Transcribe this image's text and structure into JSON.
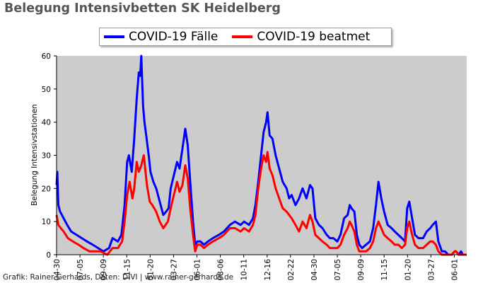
{
  "title": "Belegung Intensivbetten SK Heidelberg",
  "footer": "Grafik: Rainer Gerhards, Daten: DIVI | www.rainer-gerhards.de",
  "colors": {
    "plot_bg": "#cccccc",
    "faelle": "#0000ff",
    "beatmet": "#ff0000"
  },
  "chart_data": {
    "type": "line",
    "title": "Belegung Intensivbetten SK Heidelberg",
    "xlabel": "",
    "ylabel": "Belegung Intensivstationen",
    "ylim": [
      0,
      60
    ],
    "yticks": [
      0,
      10,
      20,
      30,
      40,
      50,
      60
    ],
    "xticks": [
      "04-30",
      "07-05",
      "09-09",
      "11-15",
      "01-20",
      "03-27",
      "06-01",
      "08-06",
      "10-11",
      "12-16",
      "02-22",
      "04-30",
      "07-05",
      "09-09",
      "11-15",
      "01-20",
      "03-27",
      "06-01"
    ],
    "x_start": "2020-04-30",
    "x_end": "2023-07-01",
    "grid": false,
    "legend_position": "top-center",
    "series": [
      {
        "name": "COVID-19 Fälle",
        "color": "#0000ff",
        "points": [
          [
            "2020-04-30",
            21
          ],
          [
            "2020-05-02",
            25
          ],
          [
            "2020-05-05",
            15
          ],
          [
            "2020-05-10",
            13
          ],
          [
            "2020-05-20",
            11
          ],
          [
            "2020-05-30",
            9
          ],
          [
            "2020-06-10",
            7
          ],
          [
            "2020-06-25",
            6
          ],
          [
            "2020-07-10",
            5
          ],
          [
            "2020-07-25",
            4
          ],
          [
            "2020-08-10",
            3
          ],
          [
            "2020-08-25",
            2
          ],
          [
            "2020-09-09",
            1
          ],
          [
            "2020-09-25",
            2
          ],
          [
            "2020-10-05",
            5
          ],
          [
            "2020-10-20",
            4
          ],
          [
            "2020-10-30",
            6
          ],
          [
            "2020-11-08",
            15
          ],
          [
            "2020-11-15",
            28
          ],
          [
            "2020-11-20",
            30
          ],
          [
            "2020-11-28",
            25
          ],
          [
            "2020-12-05",
            35
          ],
          [
            "2020-12-12",
            47
          ],
          [
            "2020-12-18",
            55
          ],
          [
            "2020-12-22",
            54
          ],
          [
            "2020-12-25",
            60
          ],
          [
            "2020-12-30",
            45
          ],
          [
            "2021-01-03",
            40
          ],
          [
            "2021-01-08",
            36
          ],
          [
            "2021-01-15",
            30
          ],
          [
            "2021-01-20",
            25
          ],
          [
            "2021-01-28",
            22
          ],
          [
            "2021-02-05",
            20
          ],
          [
            "2021-02-15",
            16
          ],
          [
            "2021-02-25",
            12
          ],
          [
            "2021-03-05",
            13
          ],
          [
            "2021-03-12",
            14
          ],
          [
            "2021-03-18",
            20
          ],
          [
            "2021-03-27",
            24
          ],
          [
            "2021-04-05",
            28
          ],
          [
            "2021-04-12",
            26
          ],
          [
            "2021-04-20",
            32
          ],
          [
            "2021-04-28",
            38
          ],
          [
            "2021-05-05",
            33
          ],
          [
            "2021-05-12",
            22
          ],
          [
            "2021-05-20",
            10
          ],
          [
            "2021-05-26",
            3
          ],
          [
            "2021-06-01",
            4
          ],
          [
            "2021-06-10",
            4
          ],
          [
            "2021-06-20",
            3
          ],
          [
            "2021-07-01",
            4
          ],
          [
            "2021-07-15",
            5
          ],
          [
            "2021-08-01",
            6
          ],
          [
            "2021-08-15",
            7
          ],
          [
            "2021-09-01",
            9
          ],
          [
            "2021-09-15",
            10
          ],
          [
            "2021-10-01",
            9
          ],
          [
            "2021-10-11",
            10
          ],
          [
            "2021-10-25",
            9
          ],
          [
            "2021-11-05",
            11
          ],
          [
            "2021-11-12",
            15
          ],
          [
            "2021-11-20",
            22
          ],
          [
            "2021-11-28",
            30
          ],
          [
            "2021-12-05",
            37
          ],
          [
            "2021-12-12",
            40
          ],
          [
            "2021-12-16",
            43
          ],
          [
            "2021-12-22",
            36
          ],
          [
            "2021-12-30",
            35
          ],
          [
            "2022-01-08",
            30
          ],
          [
            "2022-01-18",
            26
          ],
          [
            "2022-01-28",
            22
          ],
          [
            "2022-02-08",
            20
          ],
          [
            "2022-02-15",
            17
          ],
          [
            "2022-02-22",
            18
          ],
          [
            "2022-03-05",
            15
          ],
          [
            "2022-03-15",
            17
          ],
          [
            "2022-03-25",
            20
          ],
          [
            "2022-04-05",
            17
          ],
          [
            "2022-04-15",
            21
          ],
          [
            "2022-04-22",
            20
          ],
          [
            "2022-04-30",
            11
          ],
          [
            "2022-05-10",
            9
          ],
          [
            "2022-05-20",
            8
          ],
          [
            "2022-06-01",
            6
          ],
          [
            "2022-06-10",
            5
          ],
          [
            "2022-06-20",
            5
          ],
          [
            "2022-07-01",
            4
          ],
          [
            "2022-07-10",
            6
          ],
          [
            "2022-07-20",
            11
          ],
          [
            "2022-07-30",
            12
          ],
          [
            "2022-08-05",
            15
          ],
          [
            "2022-08-10",
            14
          ],
          [
            "2022-08-18",
            13
          ],
          [
            "2022-08-25",
            6
          ],
          [
            "2022-09-01",
            3
          ],
          [
            "2022-09-09",
            2
          ],
          [
            "2022-09-20",
            3
          ],
          [
            "2022-10-01",
            4
          ],
          [
            "2022-10-10",
            8
          ],
          [
            "2022-10-18",
            15
          ],
          [
            "2022-10-25",
            22
          ],
          [
            "2022-11-02",
            17
          ],
          [
            "2022-11-10",
            13
          ],
          [
            "2022-11-20",
            9
          ],
          [
            "2022-12-01",
            8
          ],
          [
            "2022-12-10",
            7
          ],
          [
            "2022-12-20",
            6
          ],
          [
            "2022-12-30",
            5
          ],
          [
            "2023-01-08",
            4
          ],
          [
            "2023-01-14",
            14
          ],
          [
            "2023-01-20",
            16
          ],
          [
            "2023-01-28",
            11
          ],
          [
            "2023-02-05",
            6
          ],
          [
            "2023-02-15",
            5
          ],
          [
            "2023-02-28",
            5
          ],
          [
            "2023-03-10",
            7
          ],
          [
            "2023-03-20",
            8
          ],
          [
            "2023-03-27",
            9
          ],
          [
            "2023-04-05",
            10
          ],
          [
            "2023-04-12",
            4
          ],
          [
            "2023-04-22",
            1
          ],
          [
            "2023-05-01",
            1
          ],
          [
            "2023-05-10",
            0
          ],
          [
            "2023-05-20",
            0
          ],
          [
            "2023-05-28",
            1
          ],
          [
            "2023-06-01",
            1
          ],
          [
            "2023-06-08",
            0
          ],
          [
            "2023-06-15",
            1
          ],
          [
            "2023-06-20",
            0
          ],
          [
            "2023-07-01",
            0
          ]
        ]
      },
      {
        "name": "COVID-19 beatmet",
        "color": "#ff0000",
        "points": [
          [
            "2020-04-30",
            12
          ],
          [
            "2020-05-05",
            9
          ],
          [
            "2020-05-12",
            8
          ],
          [
            "2020-05-20",
            7
          ],
          [
            "2020-06-01",
            5
          ],
          [
            "2020-06-15",
            4
          ],
          [
            "2020-07-01",
            3
          ],
          [
            "2020-07-15",
            2
          ],
          [
            "2020-08-01",
            1
          ],
          [
            "2020-08-15",
            1
          ],
          [
            "2020-09-01",
            1
          ],
          [
            "2020-09-20",
            0
          ],
          [
            "2020-10-05",
            2
          ],
          [
            "2020-10-20",
            2
          ],
          [
            "2020-11-01",
            4
          ],
          [
            "2020-11-08",
            10
          ],
          [
            "2020-11-15",
            18
          ],
          [
            "2020-11-22",
            22
          ],
          [
            "2020-11-30",
            17
          ],
          [
            "2020-12-05",
            20
          ],
          [
            "2020-12-12",
            28
          ],
          [
            "2020-12-18",
            25
          ],
          [
            "2020-12-25",
            27
          ],
          [
            "2021-01-01",
            30
          ],
          [
            "2021-01-05",
            26
          ],
          [
            "2021-01-10",
            21
          ],
          [
            "2021-01-18",
            16
          ],
          [
            "2021-01-25",
            15
          ],
          [
            "2021-02-05",
            13
          ],
          [
            "2021-02-15",
            10
          ],
          [
            "2021-02-25",
            8
          ],
          [
            "2021-03-10",
            10
          ],
          [
            "2021-03-20",
            15
          ],
          [
            "2021-03-27",
            18
          ],
          [
            "2021-04-05",
            22
          ],
          [
            "2021-04-12",
            19
          ],
          [
            "2021-04-20",
            21
          ],
          [
            "2021-04-28",
            27
          ],
          [
            "2021-05-05",
            23
          ],
          [
            "2021-05-12",
            14
          ],
          [
            "2021-05-20",
            6
          ],
          [
            "2021-05-26",
            1
          ],
          [
            "2021-06-01",
            3
          ],
          [
            "2021-06-10",
            3
          ],
          [
            "2021-06-20",
            2
          ],
          [
            "2021-07-01",
            3
          ],
          [
            "2021-07-15",
            4
          ],
          [
            "2021-08-01",
            5
          ],
          [
            "2021-08-15",
            6
          ],
          [
            "2021-09-01",
            8
          ],
          [
            "2021-09-15",
            8
          ],
          [
            "2021-10-01",
            7
          ],
          [
            "2021-10-11",
            8
          ],
          [
            "2021-10-25",
            7
          ],
          [
            "2021-11-05",
            9
          ],
          [
            "2021-11-12",
            12
          ],
          [
            "2021-11-20",
            20
          ],
          [
            "2021-11-28",
            26
          ],
          [
            "2021-12-05",
            30
          ],
          [
            "2021-12-12",
            28
          ],
          [
            "2021-12-16",
            31
          ],
          [
            "2021-12-22",
            26
          ],
          [
            "2021-12-30",
            24
          ],
          [
            "2022-01-08",
            20
          ],
          [
            "2022-01-18",
            17
          ],
          [
            "2022-01-28",
            14
          ],
          [
            "2022-02-08",
            13
          ],
          [
            "2022-02-15",
            12
          ],
          [
            "2022-02-22",
            11
          ],
          [
            "2022-03-05",
            9
          ],
          [
            "2022-03-15",
            7
          ],
          [
            "2022-03-25",
            10
          ],
          [
            "2022-04-05",
            8
          ],
          [
            "2022-04-15",
            12
          ],
          [
            "2022-04-22",
            10
          ],
          [
            "2022-04-30",
            6
          ],
          [
            "2022-05-10",
            5
          ],
          [
            "2022-05-20",
            4
          ],
          [
            "2022-06-01",
            3
          ],
          [
            "2022-06-10",
            2
          ],
          [
            "2022-06-20",
            2
          ],
          [
            "2022-07-01",
            2
          ],
          [
            "2022-07-10",
            3
          ],
          [
            "2022-07-20",
            6
          ],
          [
            "2022-07-30",
            8
          ],
          [
            "2022-08-05",
            10
          ],
          [
            "2022-08-10",
            9
          ],
          [
            "2022-08-18",
            7
          ],
          [
            "2022-08-25",
            3
          ],
          [
            "2022-09-01",
            1
          ],
          [
            "2022-09-09",
            1
          ],
          [
            "2022-09-20",
            1
          ],
          [
            "2022-10-01",
            2
          ],
          [
            "2022-10-10",
            4
          ],
          [
            "2022-10-18",
            8
          ],
          [
            "2022-10-25",
            10
          ],
          [
            "2022-11-02",
            8
          ],
          [
            "2022-11-10",
            6
          ],
          [
            "2022-11-20",
            5
          ],
          [
            "2022-12-01",
            4
          ],
          [
            "2022-12-10",
            3
          ],
          [
            "2022-12-20",
            3
          ],
          [
            "2022-12-30",
            2
          ],
          [
            "2023-01-08",
            3
          ],
          [
            "2023-01-14",
            8
          ],
          [
            "2023-01-20",
            10
          ],
          [
            "2023-01-28",
            6
          ],
          [
            "2023-02-05",
            3
          ],
          [
            "2023-02-15",
            2
          ],
          [
            "2023-02-28",
            2
          ],
          [
            "2023-03-10",
            3
          ],
          [
            "2023-03-20",
            4
          ],
          [
            "2023-03-27",
            4
          ],
          [
            "2023-04-05",
            3
          ],
          [
            "2023-04-12",
            1
          ],
          [
            "2023-04-22",
            0
          ],
          [
            "2023-05-01",
            0
          ],
          [
            "2023-05-10",
            0
          ],
          [
            "2023-05-20",
            0
          ],
          [
            "2023-05-28",
            1
          ],
          [
            "2023-06-01",
            1
          ],
          [
            "2023-06-08",
            0
          ],
          [
            "2023-06-15",
            0
          ],
          [
            "2023-07-01",
            0
          ]
        ]
      }
    ]
  }
}
